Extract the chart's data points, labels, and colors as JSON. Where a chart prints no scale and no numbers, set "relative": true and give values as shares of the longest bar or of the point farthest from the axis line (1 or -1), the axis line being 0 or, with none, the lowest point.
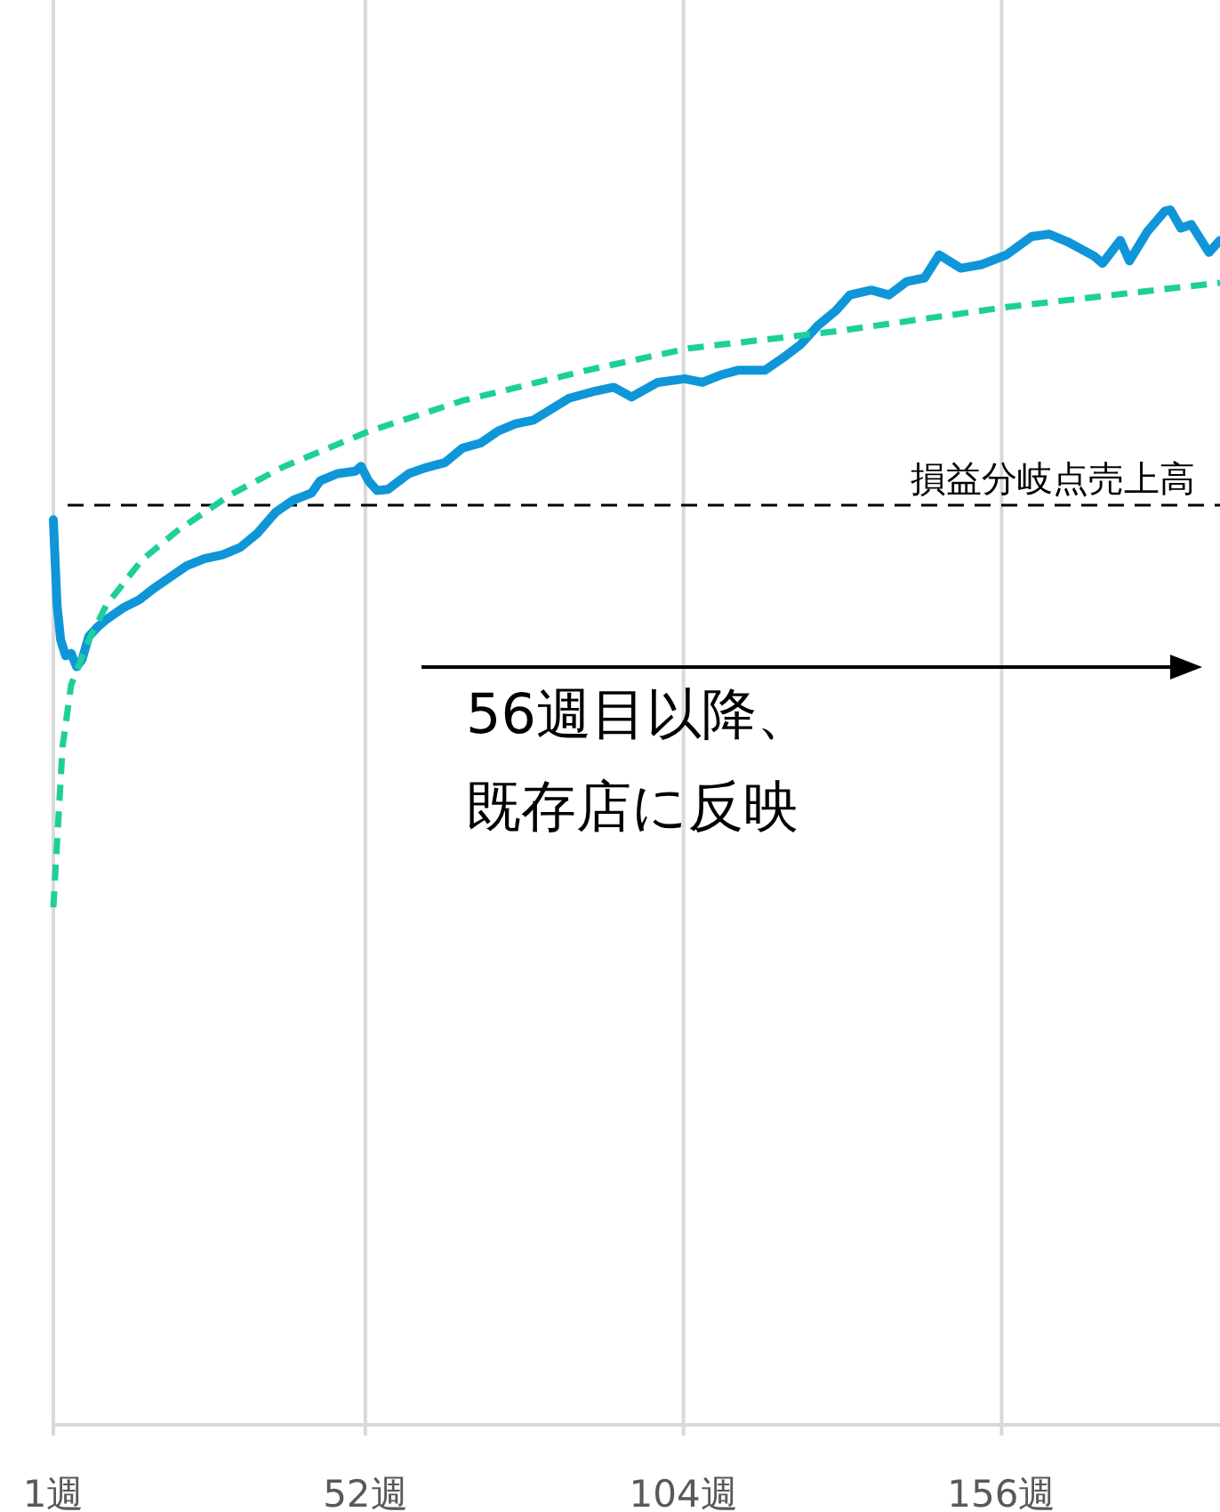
{
  "chart_data": {
    "type": "line",
    "relative": true,
    "xlim": [
      1,
      191.7
    ],
    "xticks": [
      {
        "value": 1,
        "label": "1週"
      },
      {
        "value": 52,
        "label": "52週"
      },
      {
        "value": 104,
        "label": "104週"
      },
      {
        "value": 156,
        "label": "156週"
      }
    ],
    "grid": "x",
    "marker": "none",
    "series": [
      {
        "color": "#0f96d8",
        "line_style": "solid",
        "x": [
          1,
          1.6,
          2.2,
          3,
          3.9,
          4.8,
          5.7,
          6.8,
          8.3,
          9.7,
          12.6,
          15,
          17.3,
          19.9,
          22.8,
          25.7,
          28.6,
          31.5,
          34.4,
          37.3,
          40.2,
          43.2,
          44.6,
          47.5,
          50.4,
          51.3,
          52.5,
          53.9,
          55.7,
          59.1,
          62,
          65,
          67.9,
          70.8,
          73.7,
          76.6,
          79.5,
          82.4,
          85.3,
          89.7,
          92.6,
          95.5,
          99.8,
          104.2,
          107.1,
          110,
          112.9,
          117.3,
          120.2,
          123.1,
          126,
          128.9,
          131.2,
          134.7,
          137.6,
          140.5,
          143.4,
          145.8,
          149.3,
          152.7,
          156.8,
          160.9,
          163.8,
          166.7,
          171.1,
          172.5,
          175.4,
          176.9,
          179.8,
          182.7,
          183.6,
          185.3,
          187,
          189.9,
          191.7
        ],
        "values": [
          0.745,
          0.675,
          0.646,
          0.633,
          0.635,
          0.624,
          0.63,
          0.649,
          0.657,
          0.663,
          0.673,
          0.679,
          0.688,
          0.697,
          0.707,
          0.713,
          0.716,
          0.722,
          0.734,
          0.751,
          0.761,
          0.767,
          0.777,
          0.783,
          0.785,
          0.789,
          0.777,
          0.769,
          0.77,
          0.783,
          0.788,
          0.792,
          0.804,
          0.808,
          0.818,
          0.824,
          0.827,
          0.836,
          0.845,
          0.851,
          0.854,
          0.846,
          0.858,
          0.861,
          0.858,
          0.864,
          0.868,
          0.868,
          0.878,
          0.889,
          0.905,
          0.917,
          0.93,
          0.934,
          0.93,
          0.941,
          0.944,
          0.963,
          0.952,
          0.955,
          0.963,
          0.978,
          0.98,
          0.974,
          0.962,
          0.956,
          0.975,
          0.958,
          0.982,
          0.999,
          1,
          0.985,
          0.988,
          0.965,
          0.975
        ]
      },
      {
        "color": "#1ecf9a",
        "line_style": "dashed",
        "x": [
          1,
          2.5,
          3.9,
          6.8,
          9.7,
          15.5,
          21.3,
          30.1,
          38.8,
          52.7,
          67.9,
          88.2,
          104.8,
          128.9,
          156.8,
          191.7
        ],
        "values": [
          0.426,
          0.558,
          0.609,
          0.646,
          0.675,
          0.712,
          0.736,
          0.766,
          0.789,
          0.818,
          0.843,
          0.868,
          0.886,
          0.9,
          0.92,
          0.94
        ]
      }
    ],
    "ref_lines": [
      {
        "axis": "y",
        "value": 0.757,
        "label": "損益分岐点売上高",
        "color": "#000000",
        "line_style": "dashed"
      }
    ],
    "annotations": [
      "56週目以降、",
      "既存店に反映"
    ]
  }
}
